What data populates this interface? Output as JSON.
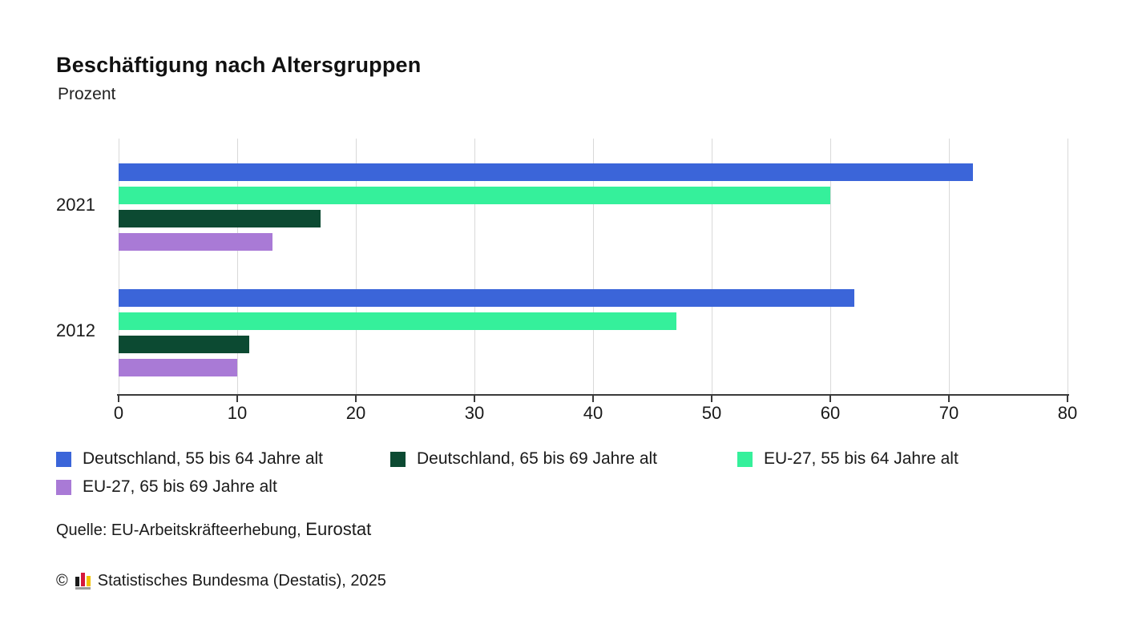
{
  "header": {
    "title": "Beschäftigung nach Altersgruppen",
    "subtitle": "Prozent"
  },
  "chart_data": {
    "type": "bar",
    "orientation": "horizontal",
    "title": "Beschäftigung nach Altersgruppen",
    "unit_label": "Prozent",
    "categories": [
      "2021",
      "2012"
    ],
    "series": [
      {
        "name": "Deutschland, 55 bis 64 Jahre alt",
        "color": "#3b65d9",
        "values": [
          72,
          62
        ]
      },
      {
        "name": "EU-27, 55 bis 64 Jahre alt",
        "color": "#35f09b",
        "values": [
          60,
          47
        ]
      },
      {
        "name": "Deutschland, 65 bis 69 Jahre alt",
        "color": "#0c4a32",
        "values": [
          17,
          11
        ]
      },
      {
        "name": "EU-27, 65 bis 69 Jahre alt",
        "color": "#a97ad6",
        "values": [
          13,
          10
        ]
      }
    ],
    "xlim": [
      0,
      80
    ],
    "xticks": [
      0,
      10,
      20,
      30,
      40,
      50,
      60,
      70,
      80
    ],
    "grid": "vertical-gridlines",
    "legend_position": "bottom"
  },
  "legend": {
    "items": [
      {
        "label": "Deutschland, 55 bis 64 Jahre alt",
        "color": "#3b65d9"
      },
      {
        "label": "Deutschland, 65 bis 69 Jahre alt",
        "color": "#0c4a32"
      },
      {
        "label": "EU-27, 55 bis 64 Jahre alt",
        "color": "#35f09b"
      },
      {
        "label": "EU-27, 65 bis 69 Jahre alt",
        "color": "#a97ad6"
      }
    ]
  },
  "source": {
    "prefix": "Quelle: EU-Arbeitskräfteerhebung,",
    "org": "Eurostat"
  },
  "footer": {
    "copyright": "©",
    "logo_name": "destatis-mini-barchart-logo",
    "text": "Statistisches Bundesma (Destatis), 2025"
  }
}
